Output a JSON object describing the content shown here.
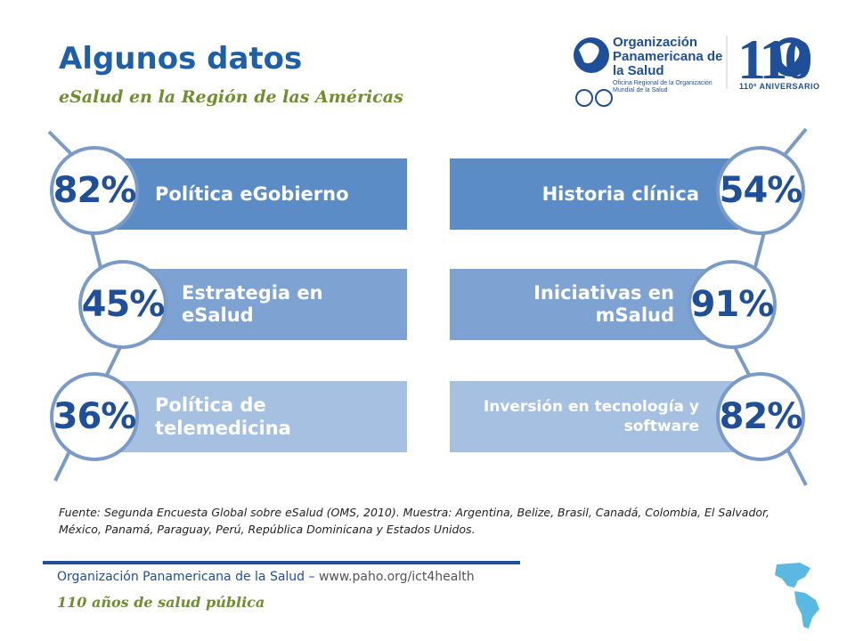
{
  "header": {
    "title": "Algunos datos",
    "subtitle": "eSalud en la Región de las Américas"
  },
  "logo": {
    "org_name": "Organización Panamericana de la Salud",
    "org_sub": "Oficina Regional de la Organización Mundial de la Salud",
    "anniversary_number": "110",
    "anniversary_label": "110º ANIVERSARIO"
  },
  "left_items": [
    {
      "percent": "82%",
      "label": "Política eGobierno"
    },
    {
      "percent": "45%",
      "label": "Estrategia en eSalud"
    },
    {
      "percent": "36%",
      "label": "Política de telemedicina"
    }
  ],
  "right_items": [
    {
      "percent": "54%",
      "label": "Historia clínica"
    },
    {
      "percent": "91%",
      "label": "Iniciativas en mSalud"
    },
    {
      "percent": "82%",
      "label": "Inversión en tecnología y software"
    }
  ],
  "source": "Fuente: Segunda Encuesta Global sobre eSalud (OMS, 2010). Muestra: Argentina, Belize, Brasil, Canadá, Colombia, El Salvador, México, Panamá, Paraguay, Perú, República Dominicana y Estados Unidos.",
  "footer": {
    "org": "Organización Panamericana de la Salud",
    "separator": " – ",
    "url": "www.paho.org/ict4health",
    "tagline": "110 años de salud pública"
  },
  "colors": {
    "band1": "#5b8cc6",
    "band2": "#7ea3d3",
    "band3": "#a6c0e2",
    "circle_border": "#7a9ac8",
    "text_blue": "#1f4f99",
    "accent_green": "#6f8f2f"
  }
}
